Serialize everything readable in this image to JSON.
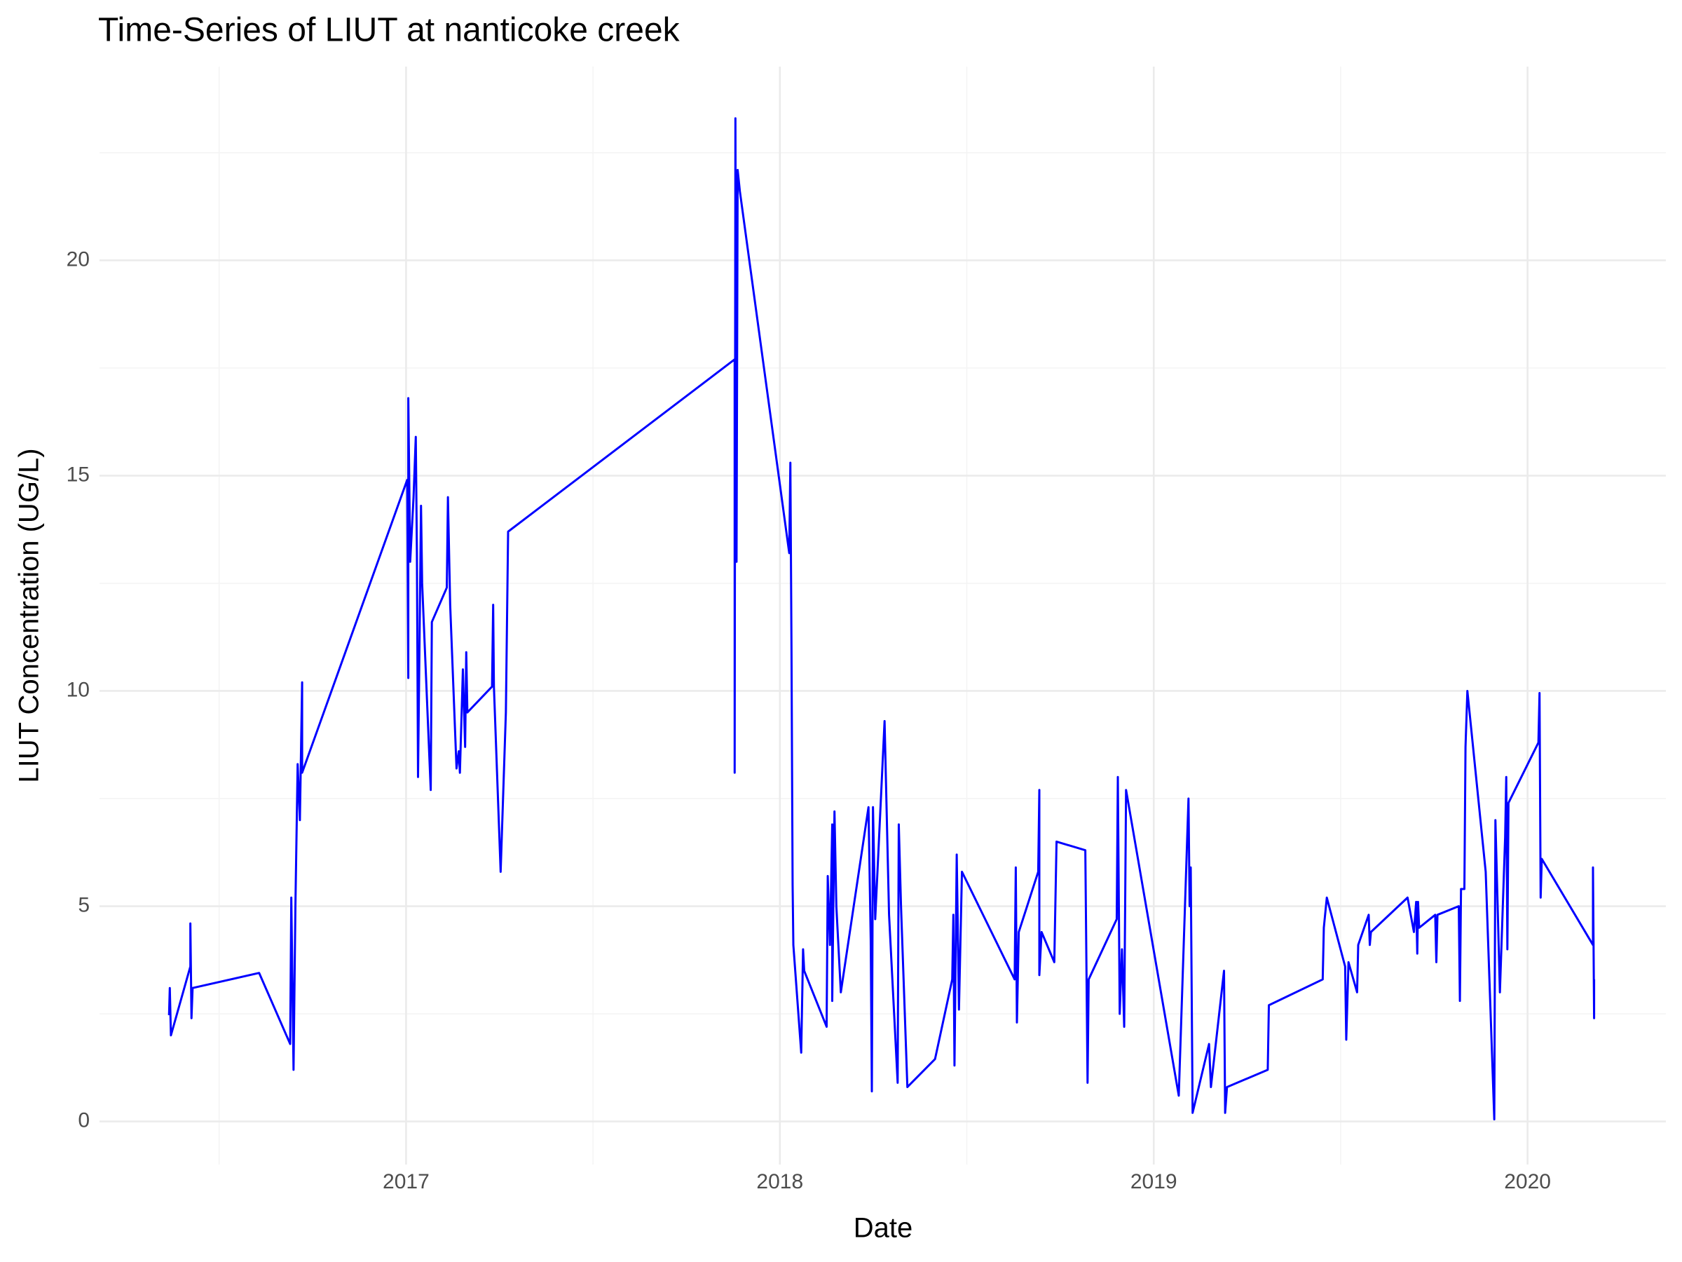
{
  "chart_data": {
    "type": "line",
    "title": "Time-Series of LIUT at nanticoke creek",
    "x_label": "Date",
    "y_label": "LIUT Concentration (UG/L)",
    "color": "#0000ff",
    "grid": true,
    "xlim": [
      2016.18,
      2020.37
    ],
    "xticks": [
      2017,
      2018,
      2019,
      2020
    ],
    "ylim": [
      -1.0,
      24.5
    ],
    "yticks": [
      0,
      5,
      10,
      15,
      20
    ],
    "x": [
      2016.366,
      2016.368,
      2016.371,
      2016.423,
      2016.423,
      2016.426,
      2016.429,
      2016.607,
      2016.69,
      2016.693,
      2016.699,
      2016.704,
      2016.71,
      2016.716,
      2016.722,
      2016.722,
      2017.003,
      2017.006,
      2017.006,
      2017.011,
      2017.02,
      2017.026,
      2017.029,
      2017.032,
      2017.04,
      2017.043,
      2017.066,
      2017.069,
      2017.109,
      2017.112,
      2017.118,
      2017.135,
      2017.141,
      2017.144,
      2017.152,
      2017.158,
      2017.161,
      2017.164,
      2017.23,
      2017.233,
      2017.235,
      2017.253,
      2017.267,
      2017.273,
      2017.879,
      2017.879,
      2017.881,
      2017.884,
      2017.887,
      2017.893,
      2018.025,
      2018.028,
      2018.031,
      2018.034,
      2018.036,
      2018.057,
      2018.062,
      2018.065,
      2018.125,
      2018.128,
      2018.134,
      2018.14,
      2018.14,
      2018.146,
      2018.151,
      2018.163,
      2018.237,
      2018.243,
      2018.246,
      2018.249,
      2018.255,
      2018.28,
      2018.292,
      2018.315,
      2018.318,
      2018.324,
      2018.341,
      2018.415,
      2018.461,
      2018.464,
      2018.467,
      2018.473,
      2018.479,
      2018.487,
      2018.628,
      2018.631,
      2018.634,
      2018.639,
      2018.691,
      2018.694,
      2018.694,
      2018.7,
      2018.734,
      2018.74,
      2018.817,
      2018.823,
      2018.826,
      2018.901,
      2018.904,
      2018.909,
      2018.915,
      2018.921,
      2018.926,
      2019.067,
      2019.093,
      2019.096,
      2019.099,
      2019.104,
      2019.148,
      2019.153,
      2019.188,
      2019.191,
      2019.196,
      2019.305,
      2019.308,
      2019.452,
      2019.455,
      2019.463,
      2019.512,
      2019.515,
      2019.521,
      2019.544,
      2019.547,
      2019.575,
      2019.578,
      2019.581,
      2019.679,
      2019.696,
      2019.702,
      2019.705,
      2019.707,
      2019.71,
      2019.753,
      2019.756,
      2019.759,
      2019.816,
      2019.819,
      2019.822,
      2019.831,
      2019.834,
      2019.839,
      2019.888,
      2019.911,
      2019.914,
      2019.926,
      2019.94,
      2019.943,
      2019.946,
      2019.949,
      2020.029,
      2020.032,
      2020.035,
      2020.038,
      2020.175,
      2020.175,
      2020.178,
      2020.178
    ],
    "values": [
      2.47,
      3.1,
      2.0,
      3.6,
      4.6,
      2.4,
      3.1,
      3.45,
      1.8,
      5.2,
      1.2,
      5.0,
      8.3,
      7.0,
      10.2,
      8.1,
      14.9,
      10.3,
      16.8,
      13.0,
      14.5,
      15.9,
      13.2,
      8.0,
      14.3,
      12.5,
      7.7,
      11.6,
      12.4,
      14.5,
      12.0,
      8.2,
      8.6,
      8.1,
      10.5,
      8.7,
      10.9,
      9.5,
      10.1,
      12.0,
      10.1,
      5.8,
      9.5,
      13.7,
      17.7,
      8.1,
      23.3,
      13.0,
      22.1,
      21.6,
      13.2,
      15.3,
      11.0,
      5.5,
      4.1,
      1.6,
      4.0,
      3.5,
      2.2,
      5.7,
      4.1,
      6.9,
      2.8,
      7.2,
      5.0,
      3.0,
      7.3,
      4.2,
      0.7,
      7.3,
      4.7,
      9.3,
      4.8,
      0.9,
      6.9,
      5.0,
      0.8,
      1.45,
      3.3,
      4.8,
      1.3,
      6.2,
      2.6,
      5.8,
      3.3,
      5.9,
      2.3,
      4.4,
      5.8,
      7.7,
      3.4,
      4.4,
      3.7,
      6.5,
      6.3,
      0.9,
      3.3,
      4.7,
      8.0,
      2.5,
      4.0,
      2.2,
      7.7,
      0.6,
      7.5,
      5.0,
      5.9,
      0.2,
      1.8,
      0.8,
      3.5,
      0.2,
      0.8,
      1.2,
      2.7,
      3.3,
      4.5,
      5.2,
      3.6,
      1.9,
      3.7,
      3.0,
      4.1,
      4.8,
      4.1,
      4.4,
      5.2,
      4.4,
      5.1,
      3.9,
      5.1,
      4.5,
      4.8,
      3.7,
      4.8,
      5.0,
      2.8,
      5.4,
      5.4,
      8.7,
      10.0,
      5.8,
      0.05,
      7.0,
      3.0,
      6.6,
      8.0,
      4.0,
      7.4,
      8.8,
      9.95,
      5.2,
      6.1,
      4.1,
      5.9,
      2.4,
      3.3
    ]
  }
}
